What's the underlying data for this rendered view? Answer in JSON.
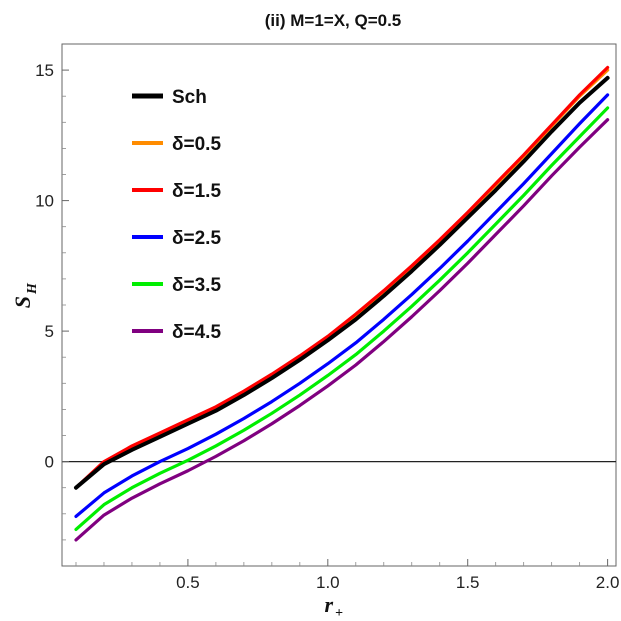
{
  "chart_data": {
    "type": "line",
    "title": "(ii) M=1=X, Q=0.5",
    "xlabel": {
      "main": "r",
      "sub": "+"
    },
    "ylabel": {
      "main": "S",
      "sub": "H"
    },
    "xlim": [
      0.05,
      2.03
    ],
    "ylim": [
      -4.0,
      16.0
    ],
    "xticks": [
      0.5,
      1.0,
      1.5,
      2.0
    ],
    "xtick_labels": [
      "0.5",
      "1.0",
      "1.5",
      "2.0"
    ],
    "yticks": [
      0,
      5,
      10,
      15
    ],
    "ytick_labels": [
      "0",
      "5",
      "10",
      "15"
    ],
    "grid": false,
    "legend_position": "top-left",
    "x": [
      0.1,
      0.2,
      0.3,
      0.4,
      0.5,
      0.6,
      0.7,
      0.8,
      0.9,
      1.0,
      1.1,
      1.2,
      1.3,
      1.4,
      1.5,
      1.6,
      1.7,
      1.8,
      1.9,
      2.0
    ],
    "series": [
      {
        "name": "Sch",
        "color": "#000000",
        "values": [
          -1.0,
          -0.1,
          0.45,
          0.95,
          1.45,
          1.95,
          2.55,
          3.2,
          3.9,
          4.65,
          5.45,
          6.35,
          7.3,
          8.3,
          9.35,
          10.4,
          11.5,
          12.65,
          13.75,
          14.7
        ]
      },
      {
        "name": "δ=0.5",
        "color": "#ff8c00",
        "values": [
          -1.0,
          -0.05,
          0.55,
          1.05,
          1.55,
          2.05,
          2.65,
          3.3,
          4.0,
          4.75,
          5.6,
          6.5,
          7.45,
          8.45,
          9.5,
          10.6,
          11.7,
          12.85,
          14.0,
          15.0
        ]
      },
      {
        "name": "δ=1.5",
        "color": "#ff0000",
        "values": [
          -1.0,
          0.0,
          0.6,
          1.1,
          1.6,
          2.1,
          2.7,
          3.35,
          4.05,
          4.8,
          5.65,
          6.55,
          7.5,
          8.5,
          9.55,
          10.65,
          11.75,
          12.9,
          14.05,
          15.1
        ]
      },
      {
        "name": "δ=2.5",
        "color": "#0000ff",
        "values": [
          -2.1,
          -1.2,
          -0.55,
          0.0,
          0.5,
          1.05,
          1.65,
          2.3,
          3.0,
          3.75,
          4.55,
          5.45,
          6.4,
          7.4,
          8.45,
          9.55,
          10.65,
          11.8,
          12.95,
          14.05
        ]
      },
      {
        "name": "δ=3.5",
        "color": "#00ee00",
        "values": [
          -2.6,
          -1.65,
          -1.0,
          -0.45,
          0.05,
          0.6,
          1.2,
          1.85,
          2.55,
          3.3,
          4.1,
          5.0,
          5.95,
          6.95,
          8.0,
          9.1,
          10.2,
          11.35,
          12.45,
          13.55
        ]
      },
      {
        "name": "δ=4.5",
        "color": "#800080",
        "values": [
          -3.0,
          -2.05,
          -1.4,
          -0.85,
          -0.35,
          0.2,
          0.8,
          1.45,
          2.15,
          2.9,
          3.7,
          4.6,
          5.55,
          6.55,
          7.6,
          8.7,
          9.8,
          10.95,
          12.05,
          13.1
        ]
      }
    ]
  }
}
